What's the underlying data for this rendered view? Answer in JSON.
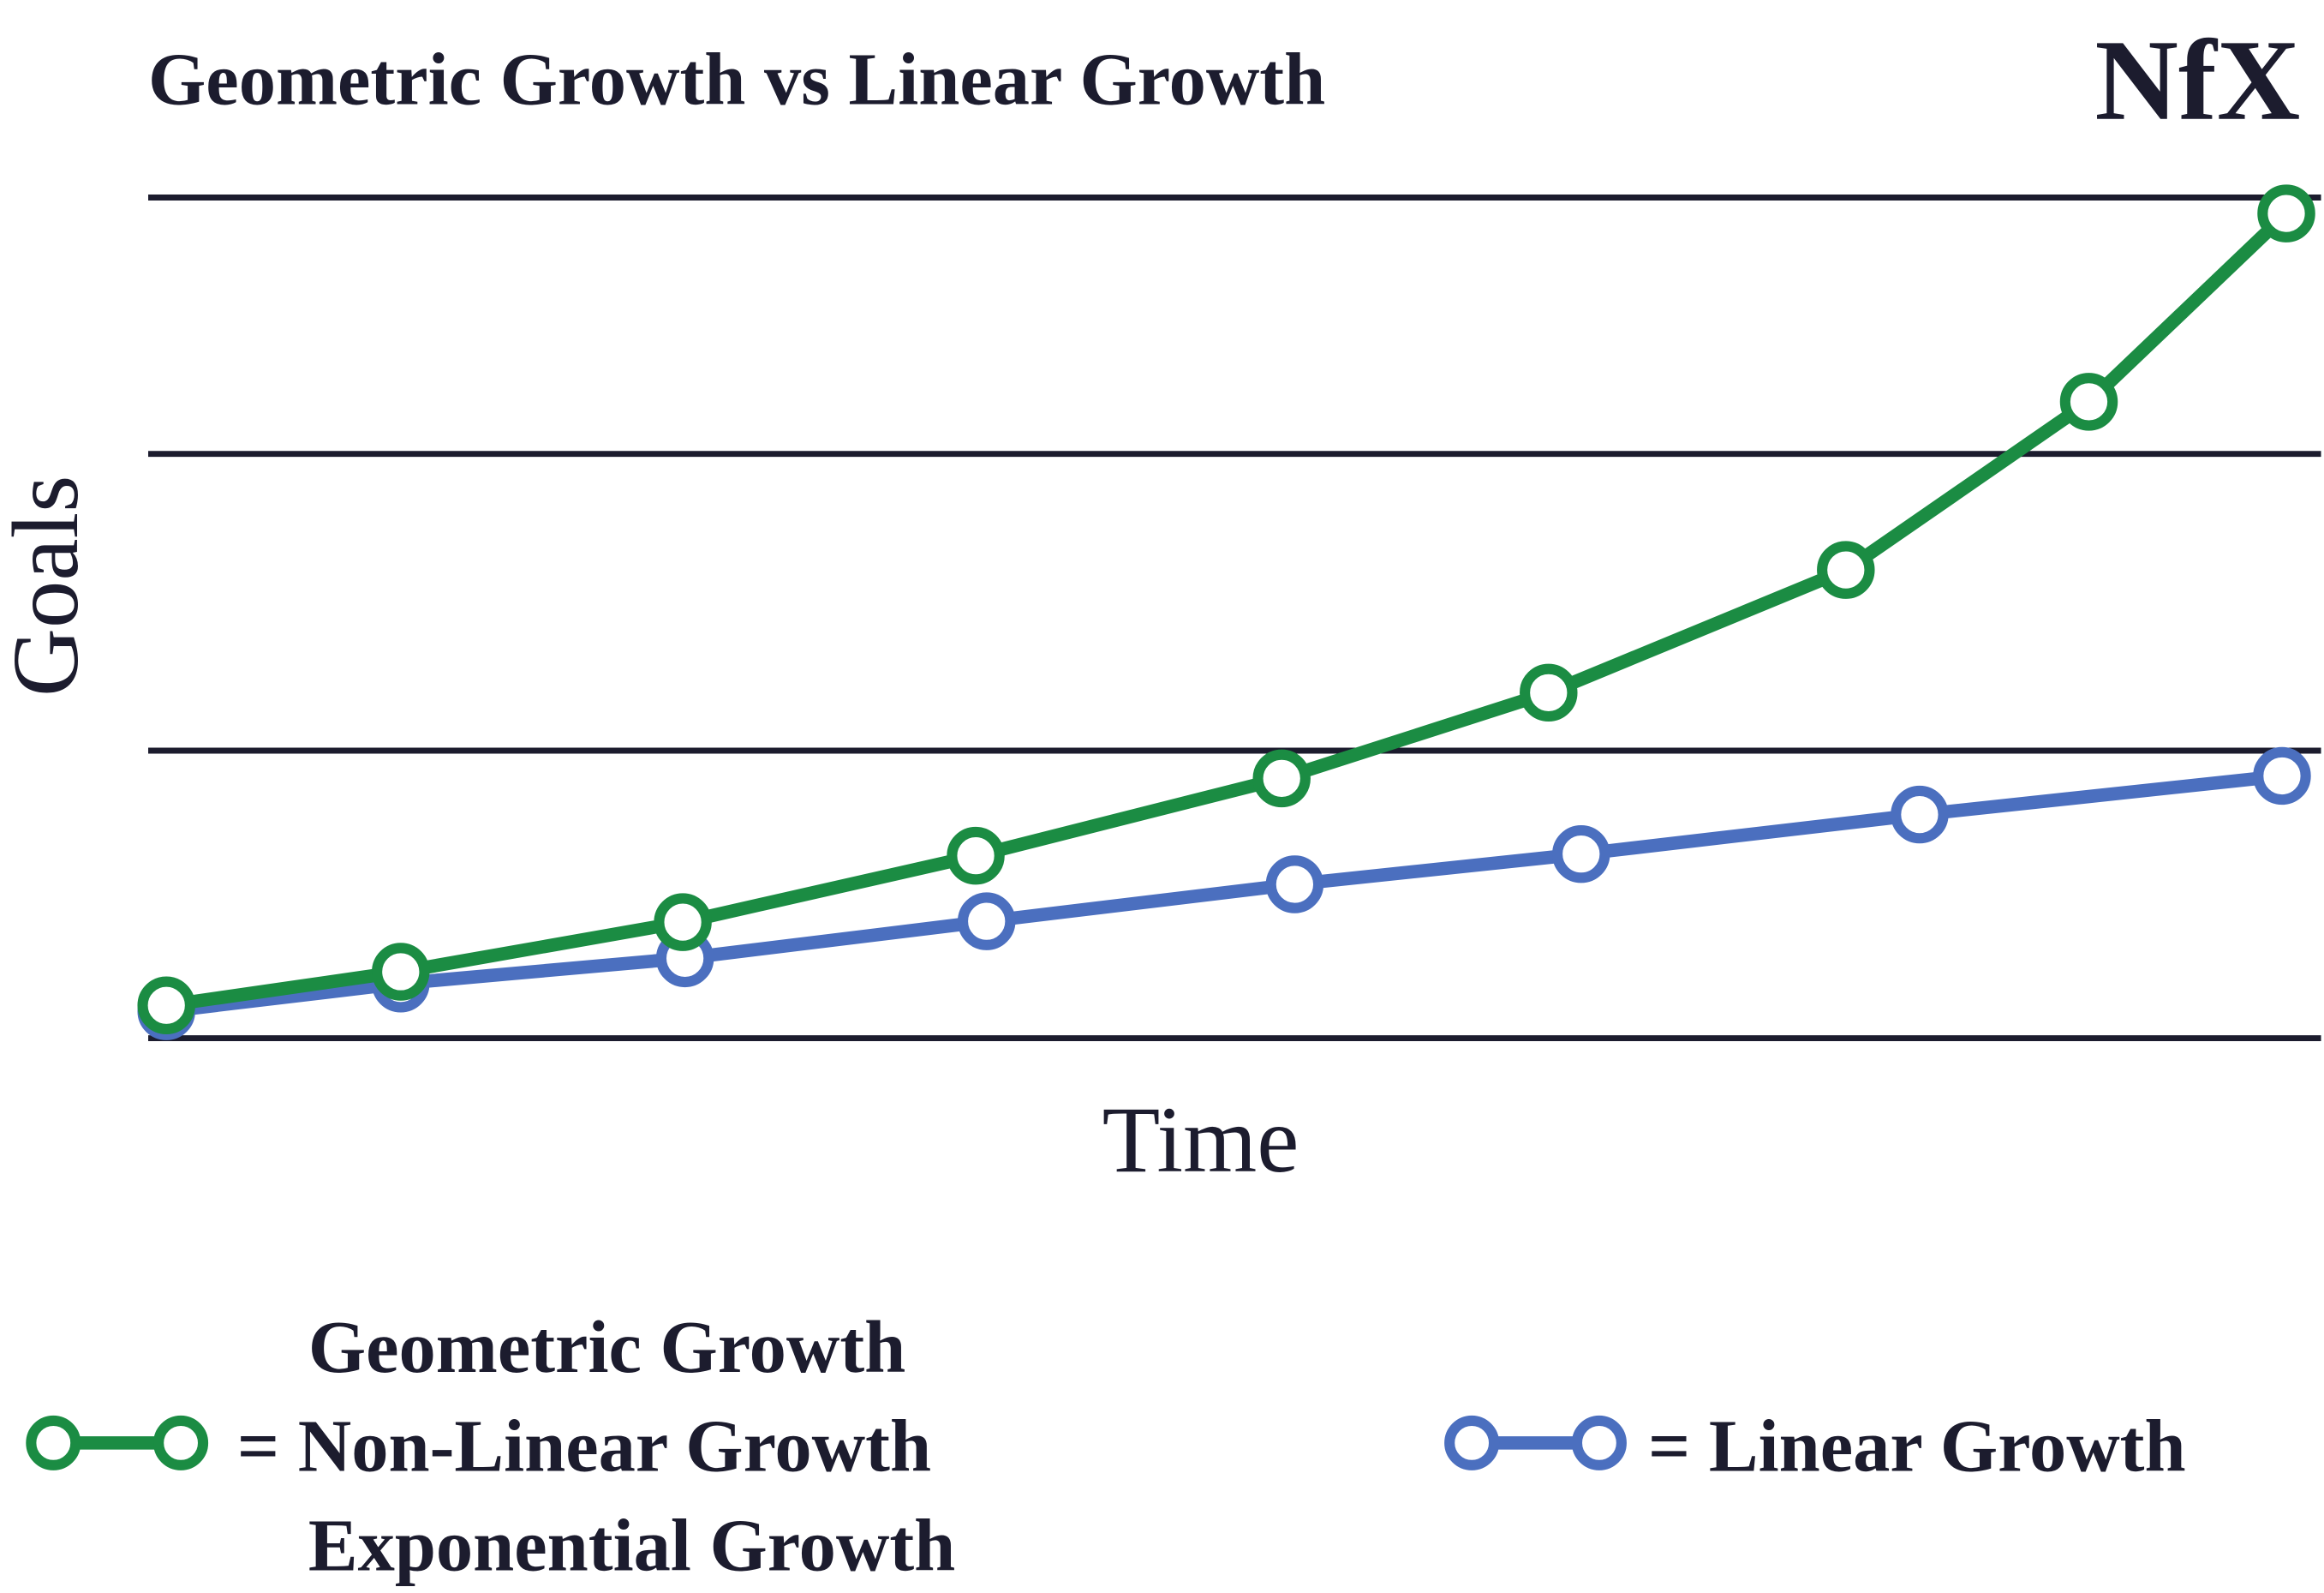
{
  "chart_data": {
    "type": "line",
    "title": "Geometric Growth vs Linear Growth",
    "logo": "NfX",
    "x_label": "Time",
    "y_label": "Goals",
    "xlim": [
      0,
      100
    ],
    "ylim": [
      0,
      100
    ],
    "gridlines": [
      0,
      34.2,
      69.5,
      100
    ],
    "series": [
      {
        "name": "= Non-Linear Growth",
        "legend_above": "Geometric Growth",
        "legend_below": "Exponential Growth",
        "color": "#1b8c43",
        "x": [
          0.7,
          11.5,
          24.5,
          38,
          52.1,
          64.4,
          78.1,
          89.3,
          98.4
        ],
        "values": [
          3.9,
          7.9,
          13.8,
          21.7,
          30.9,
          41.1,
          55.7,
          75.7,
          98.1
        ]
      },
      {
        "name": "= Linear Growth",
        "color": "#4b6fbf",
        "x": [
          0.7,
          11.5,
          24.6,
          38.5,
          52.7,
          65.9,
          81.5,
          98.2
        ],
        "values": [
          3.2,
          6.5,
          9.5,
          13.9,
          18.3,
          21.9,
          26.6,
          31.2
        ]
      }
    ]
  }
}
